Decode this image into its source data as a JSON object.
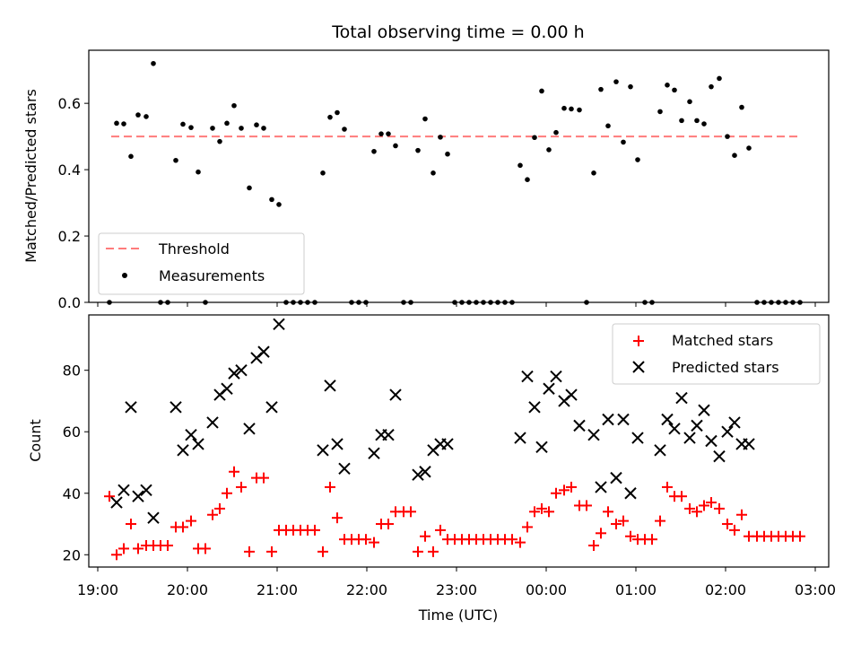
{
  "chart_data": [
    {
      "type": "scatter",
      "title": "Total observing time = 0.00 h",
      "ylabel": "Matched/Predicted stars",
      "xlim": [
        18.9,
        27.15
      ],
      "ylim": [
        0.0,
        0.76
      ],
      "yticks": [
        0.0,
        0.2,
        0.4,
        0.6
      ],
      "ytick_labels": [
        "0.0",
        "0.2",
        "0.4",
        "0.6"
      ],
      "legend_position": "lower-left",
      "threshold": {
        "name": "Threshold",
        "y": 0.5,
        "x_range": [
          19.15,
          26.82
        ],
        "color": "#ff7b7b"
      },
      "series": [
        {
          "name": "Measurements",
          "color": "#000000",
          "points": [
            [
              19.13,
              0.0
            ],
            [
              19.21,
              0.54
            ],
            [
              19.29,
              0.538
            ],
            [
              19.37,
              0.44
            ],
            [
              19.45,
              0.565
            ],
            [
              19.54,
              0.56
            ],
            [
              19.62,
              0.72
            ],
            [
              19.7,
              0.0
            ],
            [
              19.78,
              0.0
            ],
            [
              19.87,
              0.428
            ],
            [
              19.95,
              0.537
            ],
            [
              20.04,
              0.527
            ],
            [
              20.12,
              0.393
            ],
            [
              20.2,
              0.0
            ],
            [
              20.28,
              0.525
            ],
            [
              20.36,
              0.485
            ],
            [
              20.44,
              0.54
            ],
            [
              20.52,
              0.593
            ],
            [
              20.6,
              0.525
            ],
            [
              20.69,
              0.345
            ],
            [
              20.77,
              0.535
            ],
            [
              20.85,
              0.525
            ],
            [
              20.94,
              0.31
            ],
            [
              21.02,
              0.295
            ],
            [
              21.1,
              0.0
            ],
            [
              21.18,
              0.0
            ],
            [
              21.26,
              0.0
            ],
            [
              21.34,
              0.0
            ],
            [
              21.42,
              0.0
            ],
            [
              21.51,
              0.39
            ],
            [
              21.59,
              0.558
            ],
            [
              21.67,
              0.572
            ],
            [
              21.75,
              0.522
            ],
            [
              21.83,
              0.0
            ],
            [
              21.91,
              0.0
            ],
            [
              21.99,
              0.0
            ],
            [
              22.08,
              0.455
            ],
            [
              22.16,
              0.508
            ],
            [
              22.24,
              0.508
            ],
            [
              22.32,
              0.472
            ],
            [
              22.41,
              0.0
            ],
            [
              22.49,
              0.0
            ],
            [
              22.57,
              0.458
            ],
            [
              22.65,
              0.553
            ],
            [
              22.74,
              0.39
            ],
            [
              22.82,
              0.498
            ],
            [
              22.9,
              0.447
            ],
            [
              22.98,
              0.0
            ],
            [
              23.06,
              0.0
            ],
            [
              23.14,
              0.0
            ],
            [
              23.22,
              0.0
            ],
            [
              23.3,
              0.0
            ],
            [
              23.38,
              0.0
            ],
            [
              23.46,
              0.0
            ],
            [
              23.54,
              0.0
            ],
            [
              23.62,
              0.0
            ],
            [
              23.71,
              0.413
            ],
            [
              23.79,
              0.37
            ],
            [
              23.87,
              0.497
            ],
            [
              23.95,
              0.637
            ],
            [
              24.03,
              0.46
            ],
            [
              24.11,
              0.512
            ],
            [
              24.2,
              0.585
            ],
            [
              24.28,
              0.583
            ],
            [
              24.37,
              0.58
            ],
            [
              24.45,
              0.0
            ],
            [
              24.53,
              0.39
            ],
            [
              24.61,
              0.642
            ],
            [
              24.69,
              0.532
            ],
            [
              24.78,
              0.665
            ],
            [
              24.86,
              0.483
            ],
            [
              24.94,
              0.65
            ],
            [
              25.02,
              0.43
            ],
            [
              25.1,
              0.0
            ],
            [
              25.18,
              0.0
            ],
            [
              25.27,
              0.575
            ],
            [
              25.35,
              0.655
            ],
            [
              25.43,
              0.64
            ],
            [
              25.51,
              0.548
            ],
            [
              25.6,
              0.605
            ],
            [
              25.68,
              0.548
            ],
            [
              25.76,
              0.538
            ],
            [
              25.84,
              0.65
            ],
            [
              25.93,
              0.675
            ],
            [
              26.02,
              0.5
            ],
            [
              26.1,
              0.443
            ],
            [
              26.18,
              0.588
            ],
            [
              26.26,
              0.465
            ],
            [
              26.35,
              0.0
            ],
            [
              26.43,
              0.0
            ],
            [
              26.51,
              0.0
            ],
            [
              26.59,
              0.0
            ],
            [
              26.67,
              0.0
            ],
            [
              26.75,
              0.0
            ],
            [
              26.83,
              0.0
            ]
          ]
        }
      ]
    },
    {
      "type": "scatter",
      "ylabel": "Count",
      "xlabel": "Time (UTC)",
      "xlim": [
        18.9,
        27.15
      ],
      "ylim": [
        16,
        98
      ],
      "yticks": [
        20,
        40,
        60,
        80
      ],
      "ytick_labels": [
        "20",
        "40",
        "60",
        "80"
      ],
      "xticks": [
        19,
        20,
        21,
        22,
        23,
        24,
        25,
        26,
        27
      ],
      "xtick_labels": [
        "19:00",
        "20:00",
        "21:00",
        "22:00",
        "23:00",
        "00:00",
        "01:00",
        "02:00",
        "03:00"
      ],
      "legend_position": "upper-right",
      "series": [
        {
          "name": "Matched stars",
          "marker": "plus",
          "color": "#ff0000",
          "points": [
            [
              19.13,
              39
            ],
            [
              19.21,
              20
            ],
            [
              19.29,
              22
            ],
            [
              19.37,
              30
            ],
            [
              19.45,
              22
            ],
            [
              19.54,
              23
            ],
            [
              19.62,
              23
            ],
            [
              19.7,
              23
            ],
            [
              19.78,
              23
            ],
            [
              19.87,
              29
            ],
            [
              19.95,
              29
            ],
            [
              20.04,
              31
            ],
            [
              20.12,
              22
            ],
            [
              20.2,
              22
            ],
            [
              20.28,
              33
            ],
            [
              20.36,
              35
            ],
            [
              20.44,
              40
            ],
            [
              20.52,
              47
            ],
            [
              20.6,
              42
            ],
            [
              20.69,
              21
            ],
            [
              20.77,
              45
            ],
            [
              20.85,
              45
            ],
            [
              20.94,
              21
            ],
            [
              21.02,
              28
            ],
            [
              21.1,
              28
            ],
            [
              21.18,
              28
            ],
            [
              21.26,
              28
            ],
            [
              21.34,
              28
            ],
            [
              21.42,
              28
            ],
            [
              21.51,
              21
            ],
            [
              21.59,
              42
            ],
            [
              21.67,
              32
            ],
            [
              21.75,
              25
            ],
            [
              21.83,
              25
            ],
            [
              21.91,
              25
            ],
            [
              21.99,
              25
            ],
            [
              22.08,
              24
            ],
            [
              22.16,
              30
            ],
            [
              22.24,
              30
            ],
            [
              22.32,
              34
            ],
            [
              22.41,
              34
            ],
            [
              22.49,
              34
            ],
            [
              22.57,
              21
            ],
            [
              22.65,
              26
            ],
            [
              22.74,
              21
            ],
            [
              22.82,
              28
            ],
            [
              22.9,
              25
            ],
            [
              22.98,
              25
            ],
            [
              23.06,
              25
            ],
            [
              23.14,
              25
            ],
            [
              23.22,
              25
            ],
            [
              23.3,
              25
            ],
            [
              23.38,
              25
            ],
            [
              23.46,
              25
            ],
            [
              23.54,
              25
            ],
            [
              23.62,
              25
            ],
            [
              23.71,
              24
            ],
            [
              23.79,
              29
            ],
            [
              23.87,
              34
            ],
            [
              23.95,
              35
            ],
            [
              24.03,
              34
            ],
            [
              24.11,
              40
            ],
            [
              24.2,
              41
            ],
            [
              24.28,
              42
            ],
            [
              24.37,
              36
            ],
            [
              24.45,
              36
            ],
            [
              24.53,
              23
            ],
            [
              24.61,
              27
            ],
            [
              24.69,
              34
            ],
            [
              24.78,
              30
            ],
            [
              24.86,
              31
            ],
            [
              24.94,
              26
            ],
            [
              25.02,
              25
            ],
            [
              25.1,
              25
            ],
            [
              25.18,
              25
            ],
            [
              25.27,
              31
            ],
            [
              25.35,
              42
            ],
            [
              25.43,
              39
            ],
            [
              25.51,
              39
            ],
            [
              25.6,
              35
            ],
            [
              25.68,
              34
            ],
            [
              25.76,
              36
            ],
            [
              25.84,
              37
            ],
            [
              25.93,
              35
            ],
            [
              26.02,
              30
            ],
            [
              26.1,
              28
            ],
            [
              26.18,
              33
            ],
            [
              26.26,
              26
            ],
            [
              26.35,
              26
            ],
            [
              26.43,
              26
            ],
            [
              26.51,
              26
            ],
            [
              26.59,
              26
            ],
            [
              26.67,
              26
            ],
            [
              26.75,
              26
            ],
            [
              26.83,
              26
            ]
          ]
        },
        {
          "name": "Predicted stars",
          "marker": "x",
          "color": "#000000",
          "points": [
            [
              19.21,
              37
            ],
            [
              19.29,
              41
            ],
            [
              19.37,
              68
            ],
            [
              19.45,
              39
            ],
            [
              19.54,
              41
            ],
            [
              19.62,
              32
            ],
            [
              19.87,
              68
            ],
            [
              19.95,
              54
            ],
            [
              20.04,
              59
            ],
            [
              20.12,
              56
            ],
            [
              20.28,
              63
            ],
            [
              20.36,
              72
            ],
            [
              20.44,
              74
            ],
            [
              20.52,
              79
            ],
            [
              20.6,
              80
            ],
            [
              20.69,
              61
            ],
            [
              20.77,
              84
            ],
            [
              20.85,
              86
            ],
            [
              20.94,
              68
            ],
            [
              21.02,
              95
            ],
            [
              21.51,
              54
            ],
            [
              21.59,
              75
            ],
            [
              21.67,
              56
            ],
            [
              21.75,
              48
            ],
            [
              22.08,
              53
            ],
            [
              22.16,
              59
            ],
            [
              22.24,
              59
            ],
            [
              22.32,
              72
            ],
            [
              22.57,
              46
            ],
            [
              22.65,
              47
            ],
            [
              22.74,
              54
            ],
            [
              22.82,
              56
            ],
            [
              22.9,
              56
            ],
            [
              23.71,
              58
            ],
            [
              23.79,
              78
            ],
            [
              23.87,
              68
            ],
            [
              23.95,
              55
            ],
            [
              24.03,
              74
            ],
            [
              24.11,
              78
            ],
            [
              24.2,
              70
            ],
            [
              24.28,
              72
            ],
            [
              24.37,
              62
            ],
            [
              24.53,
              59
            ],
            [
              24.61,
              42
            ],
            [
              24.69,
              64
            ],
            [
              24.78,
              45
            ],
            [
              24.86,
              64
            ],
            [
              24.94,
              40
            ],
            [
              25.02,
              58
            ],
            [
              25.27,
              54
            ],
            [
              25.35,
              64
            ],
            [
              25.43,
              61
            ],
            [
              25.51,
              71
            ],
            [
              25.6,
              58
            ],
            [
              25.68,
              62
            ],
            [
              25.76,
              67
            ],
            [
              25.84,
              57
            ],
            [
              25.93,
              52
            ],
            [
              26.02,
              60
            ],
            [
              26.1,
              63
            ],
            [
              26.18,
              56
            ],
            [
              26.26,
              56
            ]
          ]
        }
      ]
    }
  ]
}
